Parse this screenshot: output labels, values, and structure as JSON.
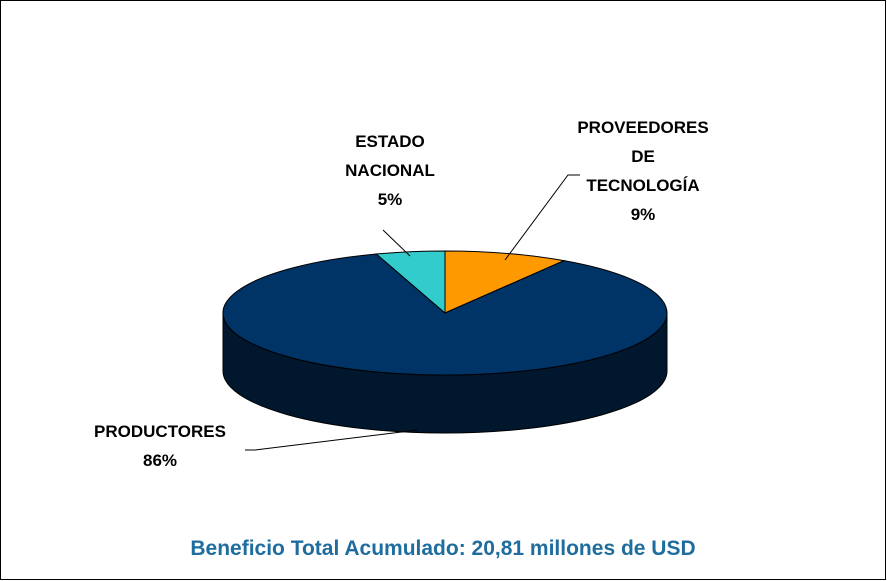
{
  "chart_data": {
    "type": "pie",
    "three_d": true,
    "title": "Beneficio Total Acumulado: 20,81 millones de USD",
    "categories": [
      "PROVEEDORES DE TECNOLOGÍA",
      "PRODUCTORES",
      "ESTADO NACIONAL"
    ],
    "values": [
      9,
      86,
      5
    ],
    "value_labels": [
      "9%",
      "86%",
      "5%"
    ],
    "colors": [
      "#ff9900",
      "#003366",
      "#33cccc"
    ]
  }
}
